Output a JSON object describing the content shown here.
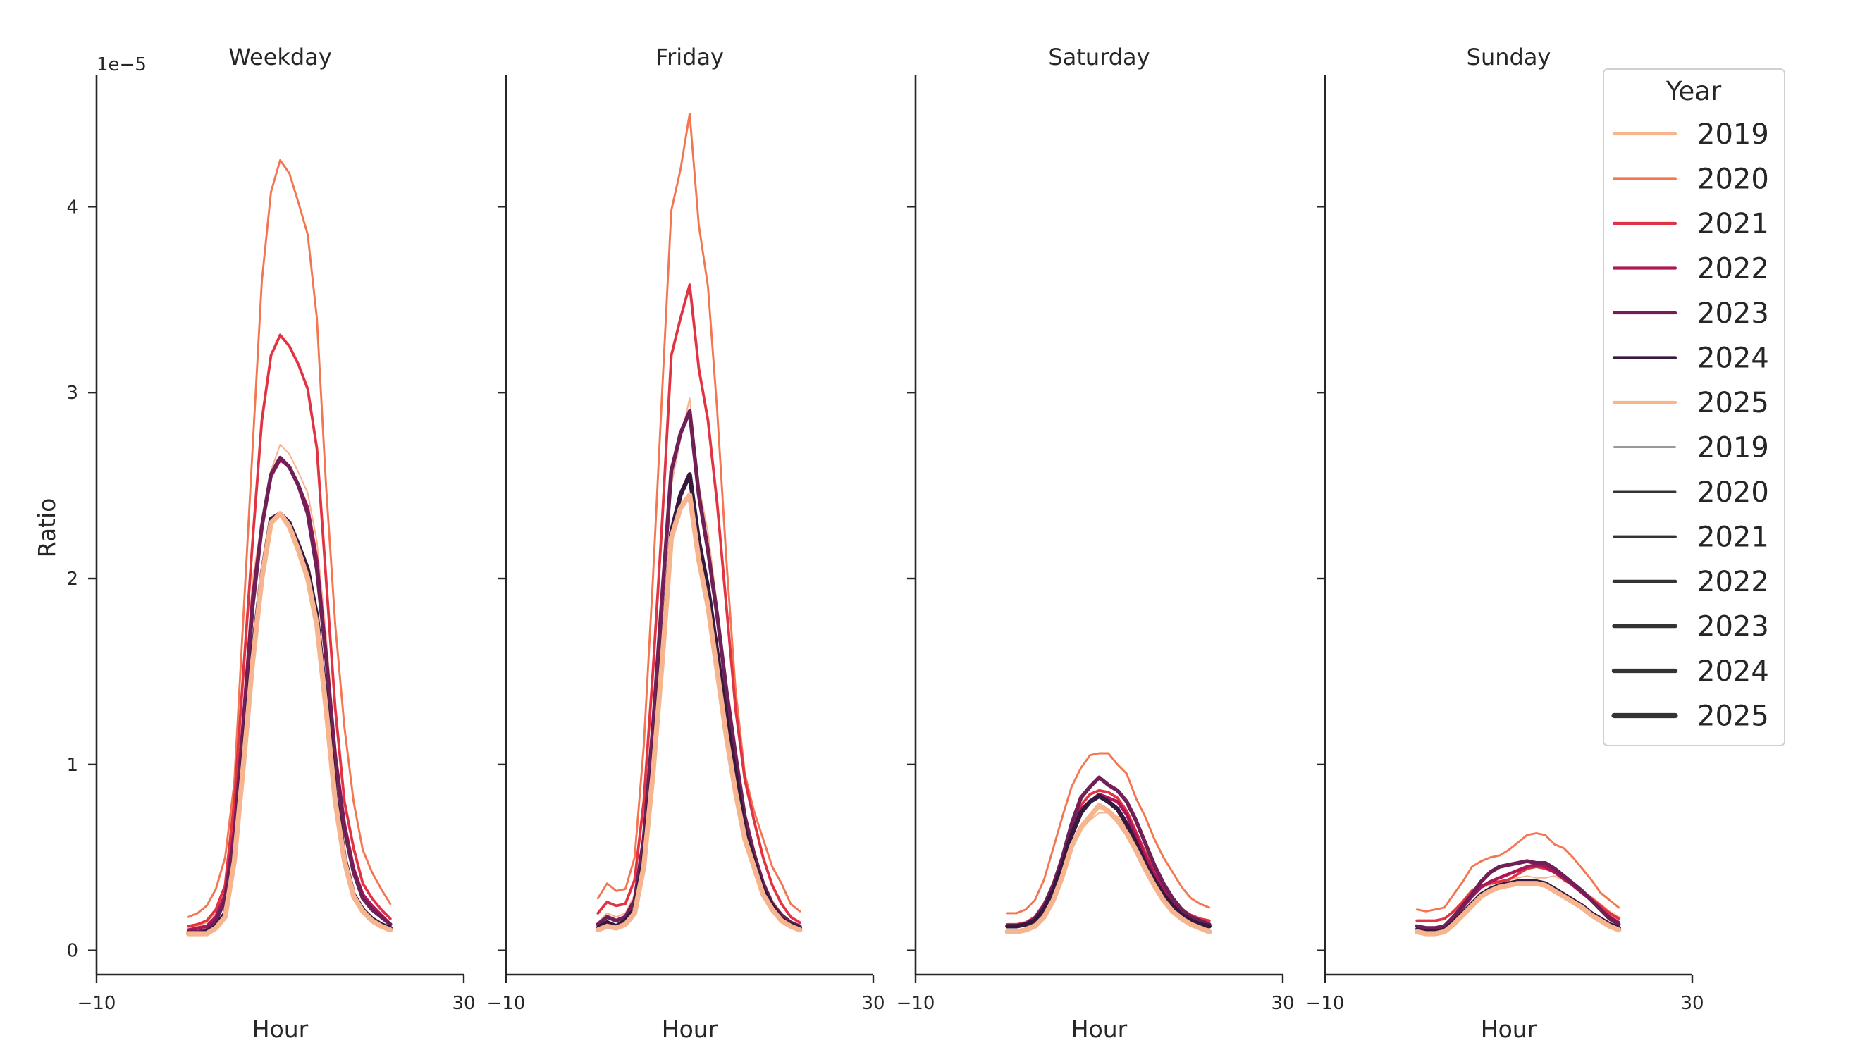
{
  "chart_data": {
    "type": "line",
    "ylabel": "Ratio",
    "xlabel": "Hour",
    "y_offset_label": "1e−5",
    "y_scale": 1e-05,
    "xlim": [
      -10,
      30
    ],
    "ylim": [
      -0.13,
      4.71
    ],
    "x_ticks": [
      "−10",
      "30"
    ],
    "y_ticks": [
      "0",
      "1",
      "2",
      "3",
      "4"
    ],
    "y_tick_values": [
      0,
      1,
      2,
      3,
      4
    ],
    "x": [
      0,
      1,
      2,
      3,
      4,
      5,
      6,
      7,
      8,
      9,
      10,
      11,
      12,
      13,
      14,
      15,
      16,
      17,
      18,
      19,
      20,
      21,
      22
    ],
    "legend": {
      "title": "Year",
      "placement": "upper-right outside",
      "color_entries": [
        "2019",
        "2020",
        "2021",
        "2022",
        "2023",
        "2024",
        "2025"
      ],
      "width_entries": [
        "2019",
        "2020",
        "2021",
        "2022",
        "2023",
        "2024",
        "2025"
      ]
    },
    "series_styles": [
      {
        "year": "2019",
        "color": "#f6b48f"
      },
      {
        "year": "2020",
        "color": "#f37651"
      },
      {
        "year": "2021",
        "color": "#e13342"
      },
      {
        "year": "2022",
        "color": "#ad1759"
      },
      {
        "year": "2023",
        "color": "#701f57"
      },
      {
        "year": "2024",
        "color": "#35193e"
      },
      {
        "year": "2025",
        "color": "#f6b48f"
      }
    ],
    "panels": [
      {
        "title": "Weekday",
        "series": {
          "2019": [
            0.12,
            0.13,
            0.15,
            0.2,
            0.3,
            0.7,
            1.3,
            2.0,
            2.3,
            2.58,
            2.72,
            2.67,
            2.57,
            2.46,
            2.2,
            1.7,
            1.1,
            0.7,
            0.45,
            0.3,
            0.24,
            0.19,
            0.15
          ],
          "2020": [
            0.18,
            0.2,
            0.24,
            0.33,
            0.5,
            0.9,
            1.8,
            2.7,
            3.6,
            4.08,
            4.25,
            4.18,
            4.02,
            3.85,
            3.4,
            2.5,
            1.75,
            1.2,
            0.8,
            0.54,
            0.42,
            0.33,
            0.25
          ],
          "2021": [
            0.13,
            0.14,
            0.16,
            0.22,
            0.35,
            0.8,
            1.5,
            2.2,
            2.85,
            3.2,
            3.31,
            3.25,
            3.15,
            3.02,
            2.7,
            2.0,
            1.3,
            0.8,
            0.55,
            0.36,
            0.28,
            0.22,
            0.17
          ],
          "2022": [
            0.11,
            0.12,
            0.13,
            0.18,
            0.3,
            0.65,
            1.25,
            1.9,
            2.28,
            2.55,
            2.64,
            2.6,
            2.5,
            2.38,
            2.1,
            1.6,
            1.05,
            0.68,
            0.44,
            0.3,
            0.24,
            0.19,
            0.14
          ],
          "2023": [
            0.1,
            0.1,
            0.11,
            0.16,
            0.27,
            0.6,
            1.2,
            1.85,
            2.28,
            2.56,
            2.65,
            2.6,
            2.5,
            2.35,
            2.05,
            1.58,
            1.03,
            0.65,
            0.42,
            0.28,
            0.22,
            0.18,
            0.14
          ],
          "2024": [
            0.09,
            0.09,
            0.1,
            0.13,
            0.2,
            0.5,
            1.05,
            1.6,
            2.02,
            2.32,
            2.35,
            2.3,
            2.18,
            2.05,
            1.8,
            1.35,
            0.85,
            0.5,
            0.3,
            0.22,
            0.17,
            0.14,
            0.12
          ],
          "2025": [
            0.09,
            0.09,
            0.09,
            0.12,
            0.18,
            0.48,
            1.0,
            1.55,
            2.0,
            2.3,
            2.35,
            2.28,
            2.15,
            2.0,
            1.75,
            1.3,
            0.8,
            0.48,
            0.29,
            0.21,
            0.16,
            0.13,
            0.11
          ]
        }
      },
      {
        "title": "Friday",
        "series": {
          "2019": [
            0.15,
            0.2,
            0.18,
            0.2,
            0.3,
            0.6,
            1.2,
            1.9,
            2.5,
            2.75,
            2.97,
            2.5,
            2.25,
            1.85,
            1.45,
            1.1,
            0.75,
            0.55,
            0.38,
            0.27,
            0.2,
            0.15,
            0.13
          ],
          "2020": [
            0.28,
            0.36,
            0.32,
            0.33,
            0.5,
            1.1,
            2.0,
            3.0,
            3.98,
            4.2,
            4.5,
            3.9,
            3.57,
            2.9,
            2.1,
            1.4,
            0.95,
            0.75,
            0.6,
            0.45,
            0.36,
            0.25,
            0.21
          ],
          "2021": [
            0.2,
            0.26,
            0.24,
            0.25,
            0.38,
            0.8,
            1.5,
            2.3,
            3.2,
            3.4,
            3.58,
            3.13,
            2.85,
            2.4,
            1.85,
            1.3,
            0.92,
            0.7,
            0.5,
            0.35,
            0.25,
            0.18,
            0.15
          ],
          "2022": [
            0.14,
            0.18,
            0.16,
            0.18,
            0.27,
            0.6,
            1.2,
            1.9,
            2.58,
            2.78,
            2.9,
            2.45,
            2.15,
            1.8,
            1.4,
            1.05,
            0.72,
            0.52,
            0.36,
            0.25,
            0.19,
            0.15,
            0.13
          ],
          "2023": [
            0.14,
            0.18,
            0.16,
            0.18,
            0.27,
            0.6,
            1.2,
            1.9,
            2.58,
            2.78,
            2.9,
            2.45,
            2.15,
            1.8,
            1.4,
            1.05,
            0.72,
            0.52,
            0.36,
            0.25,
            0.19,
            0.15,
            0.13
          ],
          "2024": [
            0.12,
            0.15,
            0.13,
            0.16,
            0.22,
            0.5,
            1.0,
            1.6,
            2.25,
            2.45,
            2.56,
            2.2,
            1.95,
            1.6,
            1.25,
            0.95,
            0.65,
            0.48,
            0.33,
            0.24,
            0.17,
            0.14,
            0.12
          ],
          "2025": [
            0.11,
            0.13,
            0.12,
            0.14,
            0.2,
            0.45,
            0.95,
            1.55,
            2.22,
            2.38,
            2.45,
            2.1,
            1.85,
            1.5,
            1.15,
            0.85,
            0.6,
            0.45,
            0.3,
            0.22,
            0.16,
            0.13,
            0.11
          ]
        }
      },
      {
        "title": "Saturday",
        "series": {
          "2019": [
            0.11,
            0.11,
            0.12,
            0.15,
            0.2,
            0.28,
            0.4,
            0.55,
            0.65,
            0.7,
            0.74,
            0.74,
            0.72,
            0.66,
            0.57,
            0.47,
            0.38,
            0.3,
            0.24,
            0.19,
            0.16,
            0.14,
            0.12
          ],
          "2020": [
            0.2,
            0.2,
            0.22,
            0.27,
            0.38,
            0.55,
            0.72,
            0.88,
            0.98,
            1.05,
            1.06,
            1.06,
            1.0,
            0.95,
            0.82,
            0.72,
            0.6,
            0.5,
            0.42,
            0.34,
            0.28,
            0.25,
            0.23
          ],
          "2021": [
            0.14,
            0.14,
            0.15,
            0.18,
            0.25,
            0.36,
            0.5,
            0.66,
            0.78,
            0.84,
            0.86,
            0.85,
            0.82,
            0.75,
            0.64,
            0.53,
            0.43,
            0.35,
            0.28,
            0.22,
            0.19,
            0.17,
            0.16
          ],
          "2022": [
            0.13,
            0.13,
            0.14,
            0.17,
            0.24,
            0.34,
            0.48,
            0.64,
            0.76,
            0.8,
            0.84,
            0.82,
            0.8,
            0.73,
            0.62,
            0.51,
            0.41,
            0.33,
            0.26,
            0.2,
            0.17,
            0.15,
            0.14
          ],
          "2023": [
            0.13,
            0.13,
            0.14,
            0.17,
            0.24,
            0.35,
            0.5,
            0.68,
            0.82,
            0.88,
            0.93,
            0.89,
            0.86,
            0.8,
            0.7,
            0.58,
            0.46,
            0.36,
            0.28,
            0.22,
            0.18,
            0.16,
            0.14
          ],
          "2024": [
            0.13,
            0.13,
            0.14,
            0.16,
            0.22,
            0.32,
            0.46,
            0.62,
            0.74,
            0.8,
            0.83,
            0.8,
            0.76,
            0.68,
            0.58,
            0.47,
            0.38,
            0.3,
            0.24,
            0.19,
            0.16,
            0.14,
            0.13
          ],
          "2025": [
            0.1,
            0.1,
            0.11,
            0.13,
            0.18,
            0.27,
            0.4,
            0.56,
            0.66,
            0.72,
            0.78,
            0.75,
            0.7,
            0.63,
            0.54,
            0.44,
            0.35,
            0.27,
            0.21,
            0.17,
            0.14,
            0.12,
            0.1
          ]
        }
      },
      {
        "title": "Sunday",
        "series": {
          "2019": [
            0.16,
            0.16,
            0.16,
            0.17,
            0.21,
            0.27,
            0.33,
            0.34,
            0.35,
            0.37,
            0.38,
            0.39,
            0.4,
            0.39,
            0.39,
            0.4,
            0.38,
            0.35,
            0.32,
            0.29,
            0.25,
            0.21,
            0.18
          ],
          "2020": [
            0.22,
            0.21,
            0.22,
            0.23,
            0.3,
            0.37,
            0.45,
            0.48,
            0.5,
            0.51,
            0.54,
            0.58,
            0.62,
            0.63,
            0.62,
            0.57,
            0.55,
            0.5,
            0.44,
            0.38,
            0.31,
            0.27,
            0.23
          ],
          "2021": [
            0.16,
            0.16,
            0.16,
            0.17,
            0.21,
            0.26,
            0.32,
            0.35,
            0.36,
            0.37,
            0.38,
            0.41,
            0.44,
            0.45,
            0.44,
            0.42,
            0.38,
            0.35,
            0.32,
            0.28,
            0.24,
            0.2,
            0.17
          ],
          "2022": [
            0.13,
            0.12,
            0.12,
            0.13,
            0.17,
            0.23,
            0.29,
            0.34,
            0.37,
            0.39,
            0.41,
            0.43,
            0.45,
            0.46,
            0.45,
            0.42,
            0.39,
            0.35,
            0.31,
            0.27,
            0.22,
            0.18,
            0.15
          ],
          "2023": [
            0.13,
            0.12,
            0.12,
            0.13,
            0.18,
            0.24,
            0.3,
            0.37,
            0.42,
            0.45,
            0.46,
            0.47,
            0.48,
            0.47,
            0.47,
            0.44,
            0.4,
            0.36,
            0.32,
            0.27,
            0.22,
            0.17,
            0.14
          ],
          "2024": [
            0.11,
            0.1,
            0.1,
            0.11,
            0.15,
            0.2,
            0.25,
            0.3,
            0.33,
            0.35,
            0.36,
            0.37,
            0.37,
            0.37,
            0.36,
            0.33,
            0.3,
            0.27,
            0.24,
            0.2,
            0.17,
            0.14,
            0.12
          ],
          "2025": [
            0.1,
            0.09,
            0.09,
            0.1,
            0.14,
            0.19,
            0.24,
            0.29,
            0.32,
            0.34,
            0.35,
            0.36,
            0.36,
            0.36,
            0.35,
            0.32,
            0.29,
            0.26,
            0.23,
            0.19,
            0.16,
            0.13,
            0.11
          ]
        }
      }
    ]
  }
}
